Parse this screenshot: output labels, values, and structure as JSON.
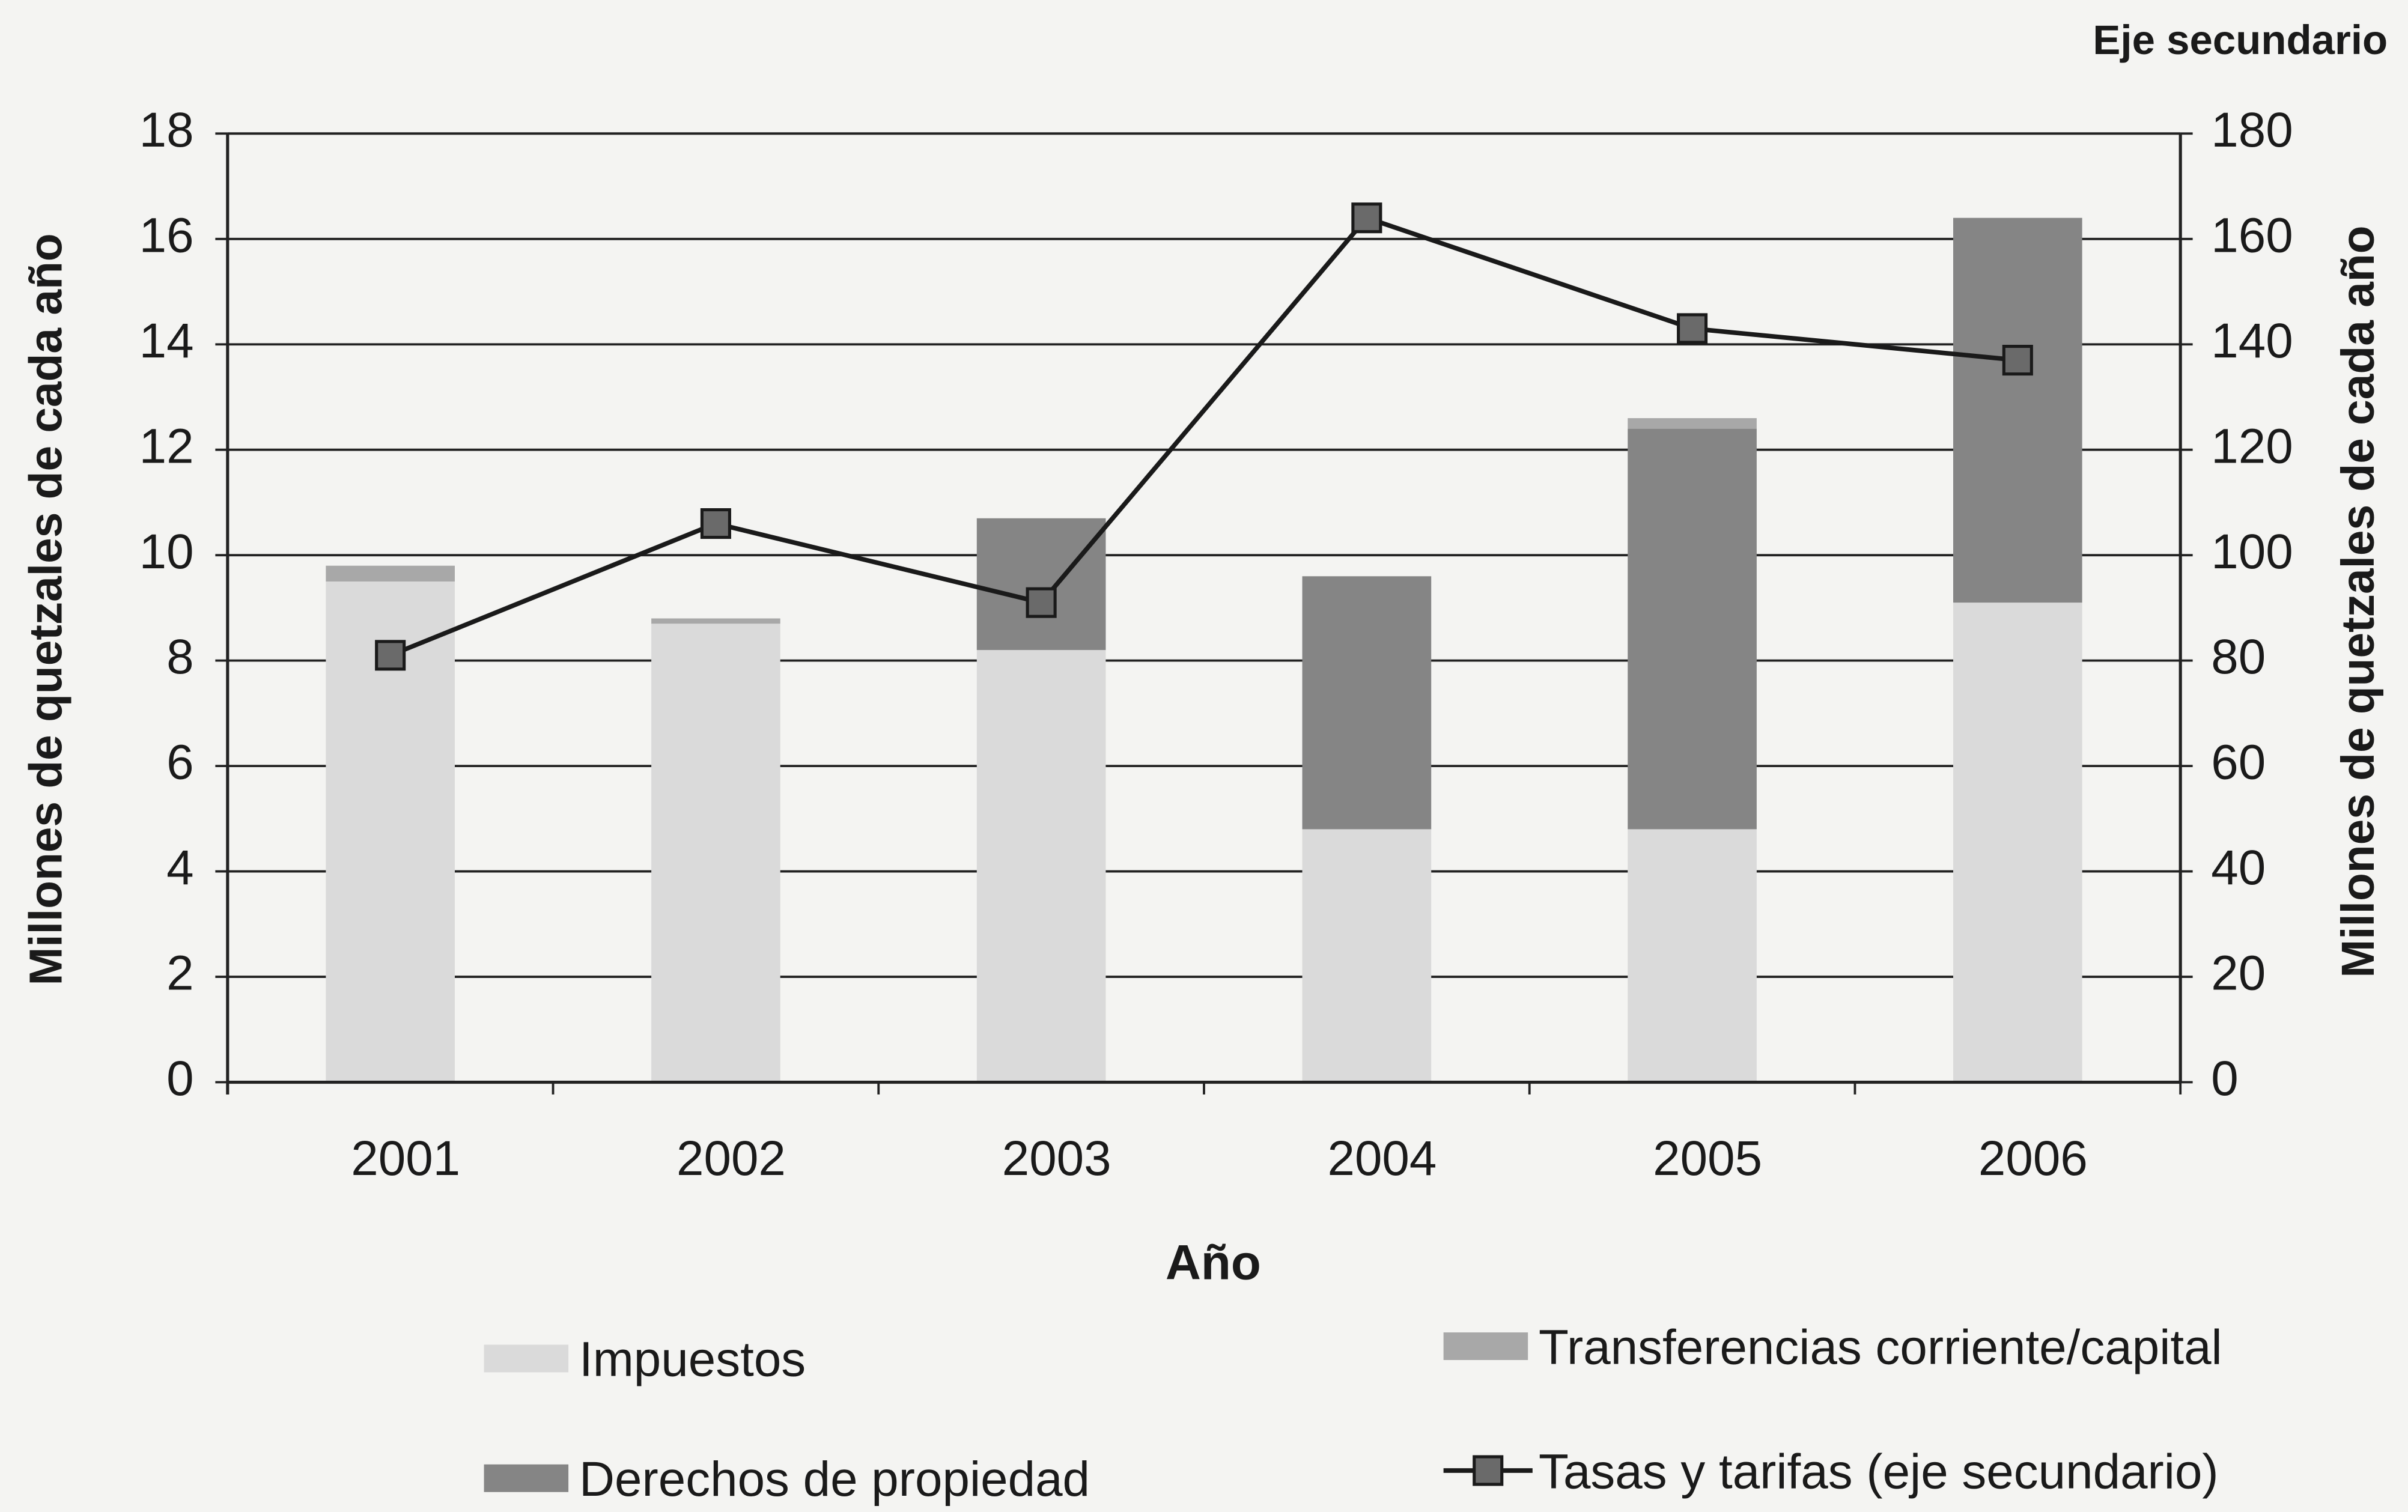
{
  "chart_data": {
    "type": "bar",
    "secondary_axis_title": "Eje secundario",
    "x_label": "Año",
    "y_label": "Millones de quetzales de cada año",
    "y2_label": "Millones de quetzales de cada año",
    "categories": [
      "2001",
      "2002",
      "2003",
      "2004",
      "2005",
      "2006"
    ],
    "series": [
      {
        "name": "Impuestos",
        "color": "#dadada",
        "values": [
          9.5,
          8.7,
          8.2,
          4.8,
          4.8,
          9.1
        ]
      },
      {
        "name": "Derechos de propiedad",
        "color": "#858585",
        "values": [
          0,
          0,
          2.5,
          4.8,
          7.6,
          7.3
        ]
      },
      {
        "name": "Transferencias corriente/capital",
        "color": "#a8a8a8",
        "values": [
          0.3,
          0.1,
          0,
          0,
          0.2,
          0
        ]
      },
      {
        "name": "Tasas y tarifas (eje secundario)",
        "type": "line",
        "axis": "y2",
        "color": "#1a1a1a",
        "marker_color": "#6a6a6a",
        "values": [
          81,
          106,
          91,
          164,
          143,
          137
        ]
      }
    ],
    "ylim": [
      0,
      18
    ],
    "yticks": [
      0,
      2,
      4,
      6,
      8,
      10,
      12,
      14,
      16,
      18
    ],
    "y2lim": [
      0,
      180
    ],
    "y2ticks": [
      0,
      20,
      40,
      60,
      80,
      100,
      120,
      140,
      160,
      180
    ],
    "grid": true
  }
}
